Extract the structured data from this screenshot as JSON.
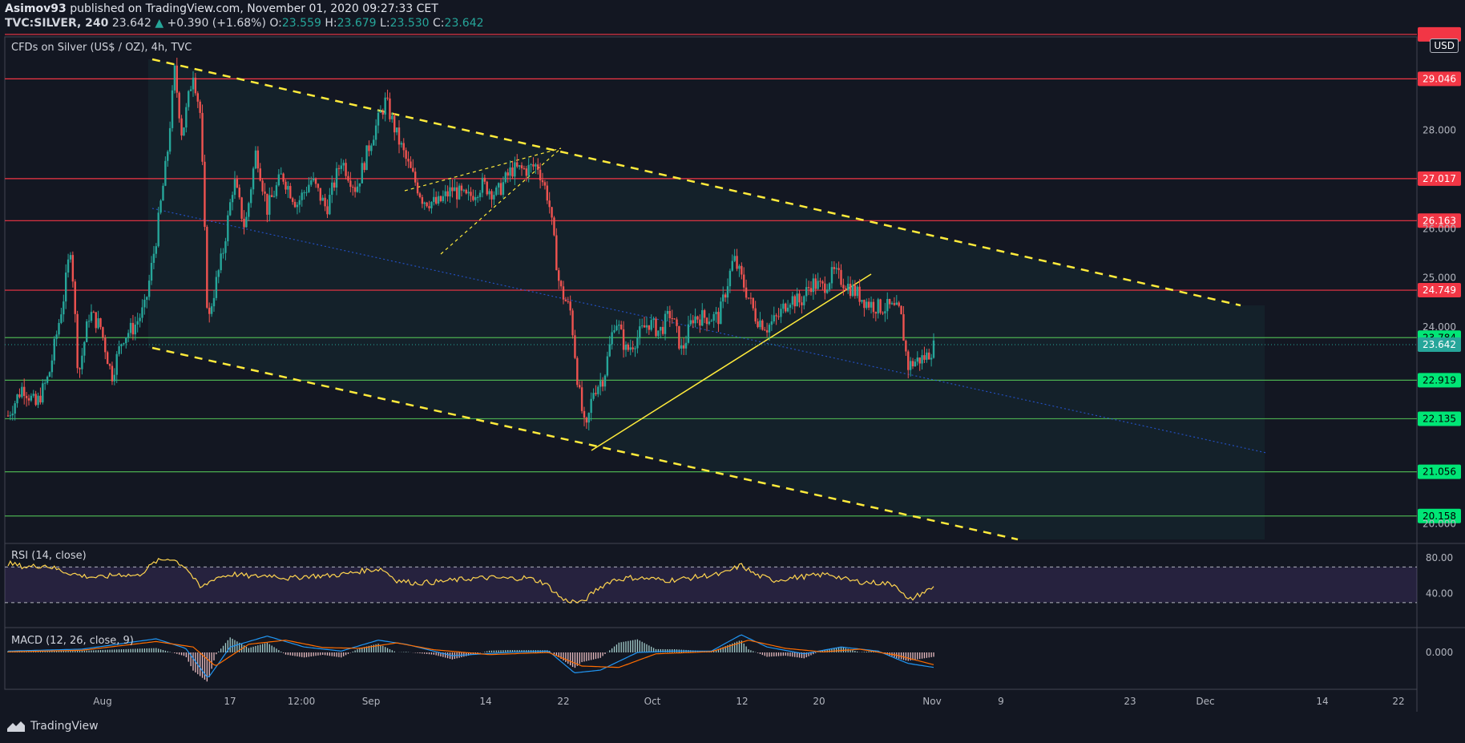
{
  "header": {
    "publisher": "Asimov93",
    "published_text": " published on TradingView.com, November 01, 2020 09:27:33 CET",
    "ticker": "TVC:SILVER, 240",
    "last": "23.642",
    "change": "+0.390 (+1.68%)",
    "open_label": "O:",
    "open": "23.559",
    "high_label": "H:",
    "high": "23.679",
    "low_label": "L:",
    "low": "23.530",
    "close_label": "C:",
    "close": "23.642"
  },
  "symbol_title": "CFDs on Silver (US$ / OZ), 4h, TVC",
  "currency_button": "USD",
  "rsi_label": "RSI (14, close)",
  "macd_label": "MACD (12, 26, close, 9)",
  "brand": "TradingView",
  "colors": {
    "background": "#131722",
    "up": "#26a69a",
    "down": "#ef5350",
    "resistance": "#f23645",
    "support": "#4caf50",
    "trendline": "#ffeb3b",
    "rsi": "#ffd54f",
    "macd": "#2196f3",
    "signal": "#ff6d00"
  },
  "chart_data": {
    "type": "candlestick",
    "price_axis_ticks": [
      "28.000",
      "26.000",
      "25.000",
      "24.000",
      "20.000"
    ],
    "time_axis_labels": [
      "Aug",
      "17",
      "12:00",
      "Sep",
      "14",
      "22",
      "Oct",
      "12",
      "20",
      "Nov",
      "9",
      "23",
      "Dec",
      "14",
      "22"
    ],
    "ylim": [
      19.6,
      29.9
    ],
    "current_price": 23.642,
    "resistance_levels": [
      {
        "value": 29.046,
        "label": "29.046"
      },
      {
        "value": 27.017,
        "label": "27.017"
      },
      {
        "value": 26.163,
        "label": "26.163"
      },
      {
        "value": 24.749,
        "label": "24.749"
      }
    ],
    "top_level": {
      "value": 29.95
    },
    "support_levels": [
      {
        "value": 23.784,
        "label": "23.784"
      },
      {
        "value": 22.919,
        "label": "22.919"
      },
      {
        "value": 22.135,
        "label": "22.135"
      },
      {
        "value": 21.056,
        "label": "21.056"
      },
      {
        "value": 20.158,
        "label": "20.158"
      }
    ],
    "price_path": [
      [
        0,
        22.2
      ],
      [
        8,
        22.8
      ],
      [
        15,
        22.4
      ],
      [
        22,
        23.0
      ],
      [
        30,
        24.6
      ],
      [
        34,
        25.7
      ],
      [
        38,
        23.0
      ],
      [
        44,
        24.3
      ],
      [
        50,
        24.0
      ],
      [
        56,
        23.0
      ],
      [
        62,
        23.8
      ],
      [
        68,
        24.0
      ],
      [
        74,
        24.4
      ],
      [
        80,
        25.8
      ],
      [
        86,
        27.5
      ],
      [
        90,
        29.2
      ],
      [
        94,
        27.9
      ],
      [
        100,
        29.2
      ],
      [
        104,
        28.3
      ],
      [
        108,
        24.0
      ],
      [
        110,
        24.5
      ],
      [
        116,
        25.5
      ],
      [
        122,
        27.0
      ],
      [
        128,
        26.0
      ],
      [
        134,
        27.6
      ],
      [
        140,
        26.4
      ],
      [
        148,
        27.1
      ],
      [
        156,
        26.5
      ],
      [
        164,
        27.0
      ],
      [
        172,
        26.4
      ],
      [
        180,
        27.4
      ],
      [
        188,
        26.8
      ],
      [
        196,
        27.8
      ],
      [
        204,
        28.6
      ],
      [
        210,
        27.9
      ],
      [
        216,
        27.3
      ],
      [
        224,
        26.6
      ],
      [
        232,
        26.5
      ],
      [
        240,
        26.8
      ],
      [
        248,
        26.6
      ],
      [
        256,
        26.9
      ],
      [
        264,
        26.7
      ],
      [
        272,
        27.2
      ],
      [
        280,
        27.2
      ],
      [
        286,
        27.3
      ],
      [
        292,
        26.6
      ],
      [
        298,
        24.8
      ],
      [
        304,
        24.3
      ],
      [
        308,
        22.8
      ],
      [
        312,
        21.8
      ],
      [
        316,
        22.7
      ],
      [
        322,
        23.0
      ],
      [
        328,
        24.2
      ],
      [
        334,
        23.5
      ],
      [
        340,
        23.8
      ],
      [
        346,
        24.1
      ],
      [
        352,
        23.9
      ],
      [
        358,
        24.3
      ],
      [
        364,
        23.5
      ],
      [
        370,
        24.2
      ],
      [
        376,
        24.2
      ],
      [
        384,
        24.2
      ],
      [
        392,
        25.4
      ],
      [
        398,
        24.8
      ],
      [
        404,
        24.2
      ],
      [
        410,
        24.0
      ],
      [
        416,
        24.2
      ],
      [
        422,
        24.6
      ],
      [
        428,
        24.5
      ],
      [
        434,
        24.9
      ],
      [
        440,
        24.8
      ],
      [
        446,
        25.1
      ],
      [
        452,
        24.9
      ],
      [
        458,
        24.7
      ],
      [
        464,
        24.5
      ],
      [
        470,
        24.4
      ],
      [
        476,
        24.4
      ],
      [
        482,
        24.3
      ],
      [
        486,
        23.2
      ],
      [
        490,
        23.3
      ],
      [
        496,
        23.4
      ],
      [
        500,
        23.6
      ]
    ],
    "rsi_axis_ticks": [
      "80.00",
      "40.00"
    ],
    "rsi_bands": [
      70,
      30
    ],
    "rsi_path": [
      [
        0,
        74
      ],
      [
        10,
        70
      ],
      [
        20,
        72
      ],
      [
        30,
        65
      ],
      [
        40,
        60
      ],
      [
        50,
        58
      ],
      [
        60,
        62
      ],
      [
        70,
        60
      ],
      [
        80,
        76
      ],
      [
        88,
        80
      ],
      [
        96,
        70
      ],
      [
        104,
        46
      ],
      [
        112,
        58
      ],
      [
        122,
        62
      ],
      [
        132,
        59
      ],
      [
        142,
        61
      ],
      [
        152,
        57
      ],
      [
        162,
        60
      ],
      [
        172,
        60
      ],
      [
        182,
        62
      ],
      [
        192,
        66
      ],
      [
        202,
        68
      ],
      [
        210,
        55
      ],
      [
        220,
        52
      ],
      [
        230,
        53
      ],
      [
        240,
        55
      ],
      [
        250,
        57
      ],
      [
        260,
        58
      ],
      [
        270,
        57
      ],
      [
        280,
        58
      ],
      [
        290,
        52
      ],
      [
        300,
        33
      ],
      [
        310,
        30
      ],
      [
        318,
        45
      ],
      [
        326,
        55
      ],
      [
        336,
        58
      ],
      [
        346,
        57
      ],
      [
        356,
        55
      ],
      [
        366,
        57
      ],
      [
        376,
        60
      ],
      [
        386,
        62
      ],
      [
        396,
        72
      ],
      [
        404,
        61
      ],
      [
        414,
        55
      ],
      [
        424,
        58
      ],
      [
        434,
        60
      ],
      [
        444,
        62
      ],
      [
        454,
        55
      ],
      [
        462,
        53
      ],
      [
        472,
        52
      ],
      [
        480,
        50
      ],
      [
        486,
        32
      ],
      [
        494,
        41
      ],
      [
        500,
        47
      ]
    ],
    "macd_axis_ticks": [
      "0.000"
    ],
    "macd_line": [
      [
        0,
        0.05
      ],
      [
        40,
        0.12
      ],
      [
        80,
        0.5
      ],
      [
        96,
        0.15
      ],
      [
        108,
        -0.95
      ],
      [
        120,
        0.2
      ],
      [
        140,
        0.6
      ],
      [
        160,
        0.2
      ],
      [
        180,
        0.05
      ],
      [
        200,
        0.45
      ],
      [
        215,
        0.3
      ],
      [
        240,
        -0.12
      ],
      [
        270,
        0.0
      ],
      [
        292,
        0.05
      ],
      [
        306,
        -0.75
      ],
      [
        320,
        -0.65
      ],
      [
        340,
        0.0
      ],
      [
        360,
        0.05
      ],
      [
        380,
        0.05
      ],
      [
        396,
        0.65
      ],
      [
        410,
        0.2
      ],
      [
        430,
        -0.05
      ],
      [
        450,
        0.2
      ],
      [
        470,
        0.05
      ],
      [
        486,
        -0.4
      ],
      [
        500,
        -0.55
      ]
    ],
    "signal_line": [
      [
        0,
        0.02
      ],
      [
        40,
        0.08
      ],
      [
        80,
        0.4
      ],
      [
        100,
        0.2
      ],
      [
        112,
        -0.5
      ],
      [
        130,
        0.3
      ],
      [
        150,
        0.45
      ],
      [
        170,
        0.18
      ],
      [
        190,
        0.15
      ],
      [
        210,
        0.35
      ],
      [
        230,
        0.1
      ],
      [
        260,
        -0.08
      ],
      [
        292,
        0.0
      ],
      [
        310,
        -0.5
      ],
      [
        330,
        -0.55
      ],
      [
        350,
        -0.05
      ],
      [
        380,
        0.03
      ],
      [
        400,
        0.45
      ],
      [
        420,
        0.15
      ],
      [
        440,
        0.02
      ],
      [
        460,
        0.12
      ],
      [
        480,
        -0.1
      ],
      [
        500,
        -0.45
      ]
    ]
  }
}
